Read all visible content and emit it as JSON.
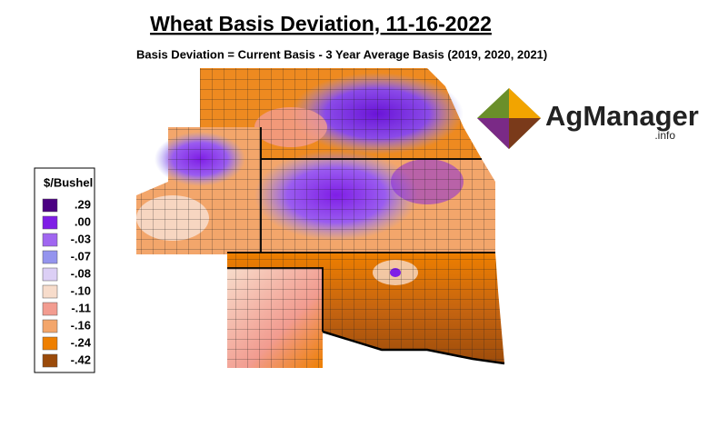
{
  "header": {
    "title": "Wheat Basis Deviation, 11-16-2022",
    "subtitle": "Basis Deviation = Current Basis - 3 Year Average Basis (2019, 2020, 2021)"
  },
  "legend": {
    "title": "$/Bushel",
    "items": [
      {
        "label": ".29",
        "color": "#4b0082"
      },
      {
        "label": ".00",
        "color": "#7f1ee6"
      },
      {
        "label": "-.03",
        "color": "#a066f0"
      },
      {
        "label": "-.07",
        "color": "#9494ee"
      },
      {
        "label": "-.08",
        "color": "#dccff5"
      },
      {
        "label": "-.10",
        "color": "#f7dccb"
      },
      {
        "label": "-.11",
        "color": "#f29c90"
      },
      {
        "label": "-.16",
        "color": "#f3a66b"
      },
      {
        "label": "-.24",
        "color": "#ee7f00"
      },
      {
        "label": "-.42",
        "color": "#9a4a0a"
      }
    ]
  },
  "logo": {
    "name": "AgManager",
    "suffix": ".info"
  }
}
